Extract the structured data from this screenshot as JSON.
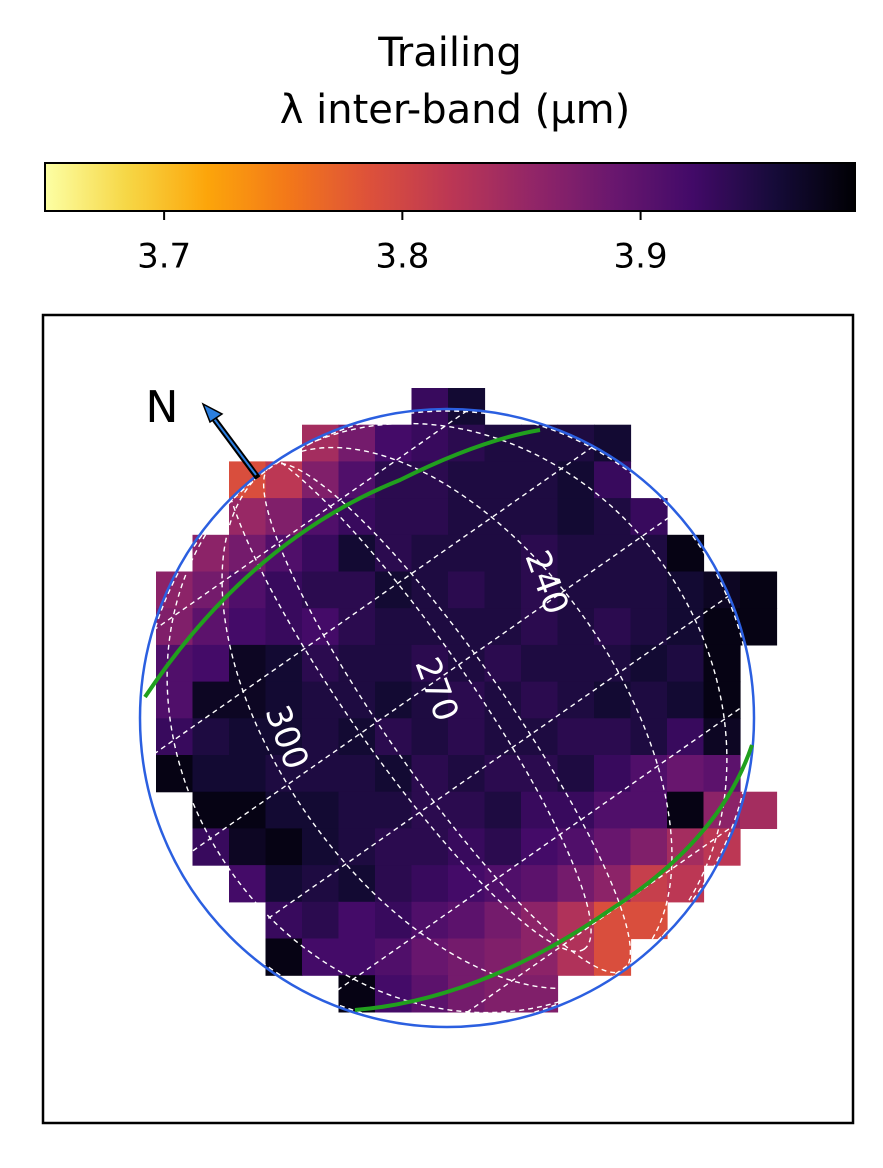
{
  "chart_data": {
    "type": "heatmap",
    "title": "Trailing",
    "colorbar_label": "λ inter-band  (μm)",
    "colormap": "inferno_r",
    "zlim": [
      3.65,
      3.99
    ],
    "zticks": [
      3.7,
      3.8,
      3.9
    ],
    "values": [
      [
        null,
        null,
        null,
        null,
        null,
        null,
        null,
        3.93,
        3.96,
        null,
        null,
        null,
        null,
        null,
        null,
        null,
        null
      ],
      [
        null,
        null,
        null,
        null,
        3.84,
        3.88,
        3.92,
        3.93,
        3.94,
        3.95,
        3.95,
        3.95,
        3.96,
        null,
        null,
        null,
        null
      ],
      [
        null,
        null,
        3.79,
        3.82,
        3.87,
        3.91,
        3.94,
        3.94,
        3.95,
        3.95,
        3.95,
        3.96,
        3.93,
        null,
        null,
        null,
        null
      ],
      [
        null,
        null,
        3.85,
        3.87,
        3.91,
        3.93,
        3.94,
        3.94,
        3.95,
        3.95,
        3.95,
        3.96,
        3.95,
        3.93,
        null,
        null,
        null
      ],
      [
        null,
        3.86,
        3.88,
        3.91,
        3.93,
        3.96,
        3.94,
        3.95,
        3.95,
        3.95,
        3.94,
        3.95,
        3.95,
        3.95,
        3.98,
        null,
        null
      ],
      [
        3.86,
        3.88,
        3.91,
        3.93,
        3.94,
        3.94,
        3.96,
        3.95,
        3.94,
        3.95,
        3.94,
        3.95,
        3.95,
        3.95,
        3.96,
        3.97,
        3.98
      ],
      [
        3.87,
        3.9,
        3.92,
        3.93,
        3.92,
        3.94,
        3.95,
        3.95,
        3.95,
        3.95,
        3.94,
        3.95,
        3.94,
        3.95,
        3.96,
        3.98,
        3.98
      ],
      [
        3.91,
        3.92,
        3.97,
        3.96,
        3.94,
        3.95,
        3.95,
        3.94,
        3.95,
        3.94,
        3.95,
        3.95,
        3.95,
        3.96,
        3.95,
        3.98,
        null
      ],
      [
        3.91,
        3.97,
        3.97,
        3.96,
        3.95,
        3.95,
        3.96,
        3.95,
        3.94,
        3.95,
        3.94,
        3.95,
        3.96,
        3.95,
        3.96,
        3.98,
        null
      ],
      [
        3.93,
        3.95,
        3.96,
        3.96,
        3.95,
        3.96,
        3.94,
        3.95,
        3.94,
        3.95,
        3.95,
        3.94,
        3.94,
        3.95,
        3.93,
        3.97,
        null
      ],
      [
        3.98,
        3.96,
        3.96,
        3.95,
        3.95,
        3.95,
        3.96,
        3.94,
        3.95,
        3.94,
        3.94,
        3.95,
        3.93,
        3.91,
        3.89,
        3.9,
        null
      ],
      [
        null,
        3.98,
        3.98,
        3.96,
        3.96,
        3.95,
        3.95,
        3.94,
        3.94,
        3.95,
        3.93,
        3.93,
        3.91,
        3.91,
        3.98,
        3.86,
        3.84
      ],
      [
        null,
        3.93,
        3.97,
        3.98,
        3.96,
        3.95,
        3.94,
        3.94,
        3.93,
        3.94,
        3.92,
        3.91,
        3.89,
        3.87,
        3.84,
        3.82,
        null
      ],
      [
        null,
        null,
        3.92,
        3.96,
        3.95,
        3.96,
        3.94,
        3.93,
        3.92,
        3.91,
        3.9,
        3.88,
        3.86,
        3.81,
        3.82,
        null,
        null
      ],
      [
        null,
        null,
        null,
        3.93,
        3.94,
        3.92,
        3.93,
        3.91,
        3.9,
        3.88,
        3.86,
        3.83,
        3.79,
        3.79,
        null,
        null,
        null
      ],
      [
        null,
        null,
        null,
        3.98,
        3.92,
        3.92,
        3.91,
        3.89,
        3.88,
        3.87,
        3.86,
        3.83,
        3.79,
        null,
        null,
        null,
        null
      ],
      [
        null,
        null,
        null,
        null,
        null,
        3.98,
        3.92,
        3.9,
        3.88,
        3.87,
        3.87,
        null,
        null,
        null,
        null,
        null,
        null
      ]
    ],
    "annotations": {
      "north": "N",
      "longitudes": [
        "240",
        "270",
        "300"
      ]
    }
  }
}
